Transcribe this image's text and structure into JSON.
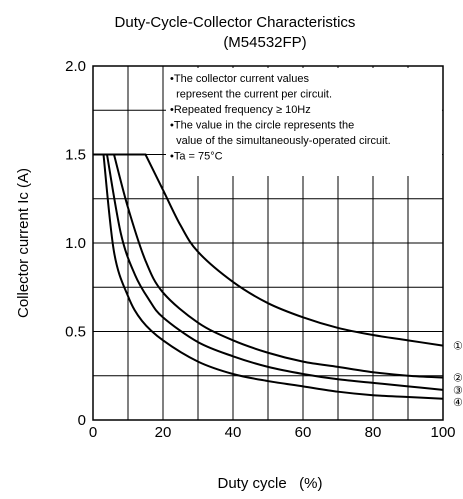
{
  "chart_data": {
    "type": "line",
    "title": "Duty-Cycle-Collector Characteristics",
    "subtitle": "(M54532FP)",
    "xlabel": "Duty cycle   (%)",
    "ylabel": "Collector current  Ic (A)",
    "xlim": [
      0,
      100
    ],
    "ylim": [
      0,
      2.0
    ],
    "x_ticks": [
      0,
      20,
      40,
      60,
      80,
      100
    ],
    "x_tick_labels": [
      "0",
      "20",
      "40",
      "60",
      "80",
      "100"
    ],
    "y_ticks": [
      0,
      0.5,
      1.0,
      1.5,
      2.0
    ],
    "y_tick_labels": [
      "0",
      "0.5",
      "1.0",
      "1.5",
      "2.0"
    ],
    "grid": true,
    "grid_x_step": 10,
    "grid_y_step": 0.25,
    "annotations": [
      "•The collector current values",
      "  represent the current per circuit.",
      "•Repeated frequency ≥ 10Hz",
      "•The value in the circle represents the",
      "  value of the simultaneously-operated circuit.",
      "•Ta = 75°C"
    ],
    "series": [
      {
        "circle_label": "①",
        "x": [
          15,
          20,
          25,
          30,
          40,
          50,
          60,
          70,
          80,
          90,
          100
        ],
        "y": [
          1.5,
          1.3,
          1.1,
          0.95,
          0.78,
          0.66,
          0.58,
          0.52,
          0.48,
          0.45,
          0.42
        ]
      },
      {
        "circle_label": "②",
        "x": [
          6,
          10,
          15,
          20,
          30,
          40,
          50,
          60,
          70,
          80,
          90,
          100
        ],
        "y": [
          1.5,
          1.2,
          0.9,
          0.72,
          0.55,
          0.45,
          0.38,
          0.33,
          0.3,
          0.27,
          0.25,
          0.24
        ]
      },
      {
        "circle_label": "③",
        "x": [
          4,
          8,
          12,
          16,
          20,
          30,
          40,
          50,
          60,
          70,
          80,
          90,
          100
        ],
        "y": [
          1.5,
          1.05,
          0.82,
          0.68,
          0.58,
          0.44,
          0.36,
          0.3,
          0.26,
          0.23,
          0.21,
          0.19,
          0.17
        ]
      },
      {
        "circle_label": "④",
        "x": [
          3,
          6,
          10,
          14,
          20,
          30,
          40,
          50,
          60,
          70,
          80,
          90,
          100
        ],
        "y": [
          1.5,
          0.95,
          0.7,
          0.56,
          0.45,
          0.33,
          0.26,
          0.22,
          0.19,
          0.16,
          0.14,
          0.13,
          0.12
        ]
      }
    ]
  }
}
